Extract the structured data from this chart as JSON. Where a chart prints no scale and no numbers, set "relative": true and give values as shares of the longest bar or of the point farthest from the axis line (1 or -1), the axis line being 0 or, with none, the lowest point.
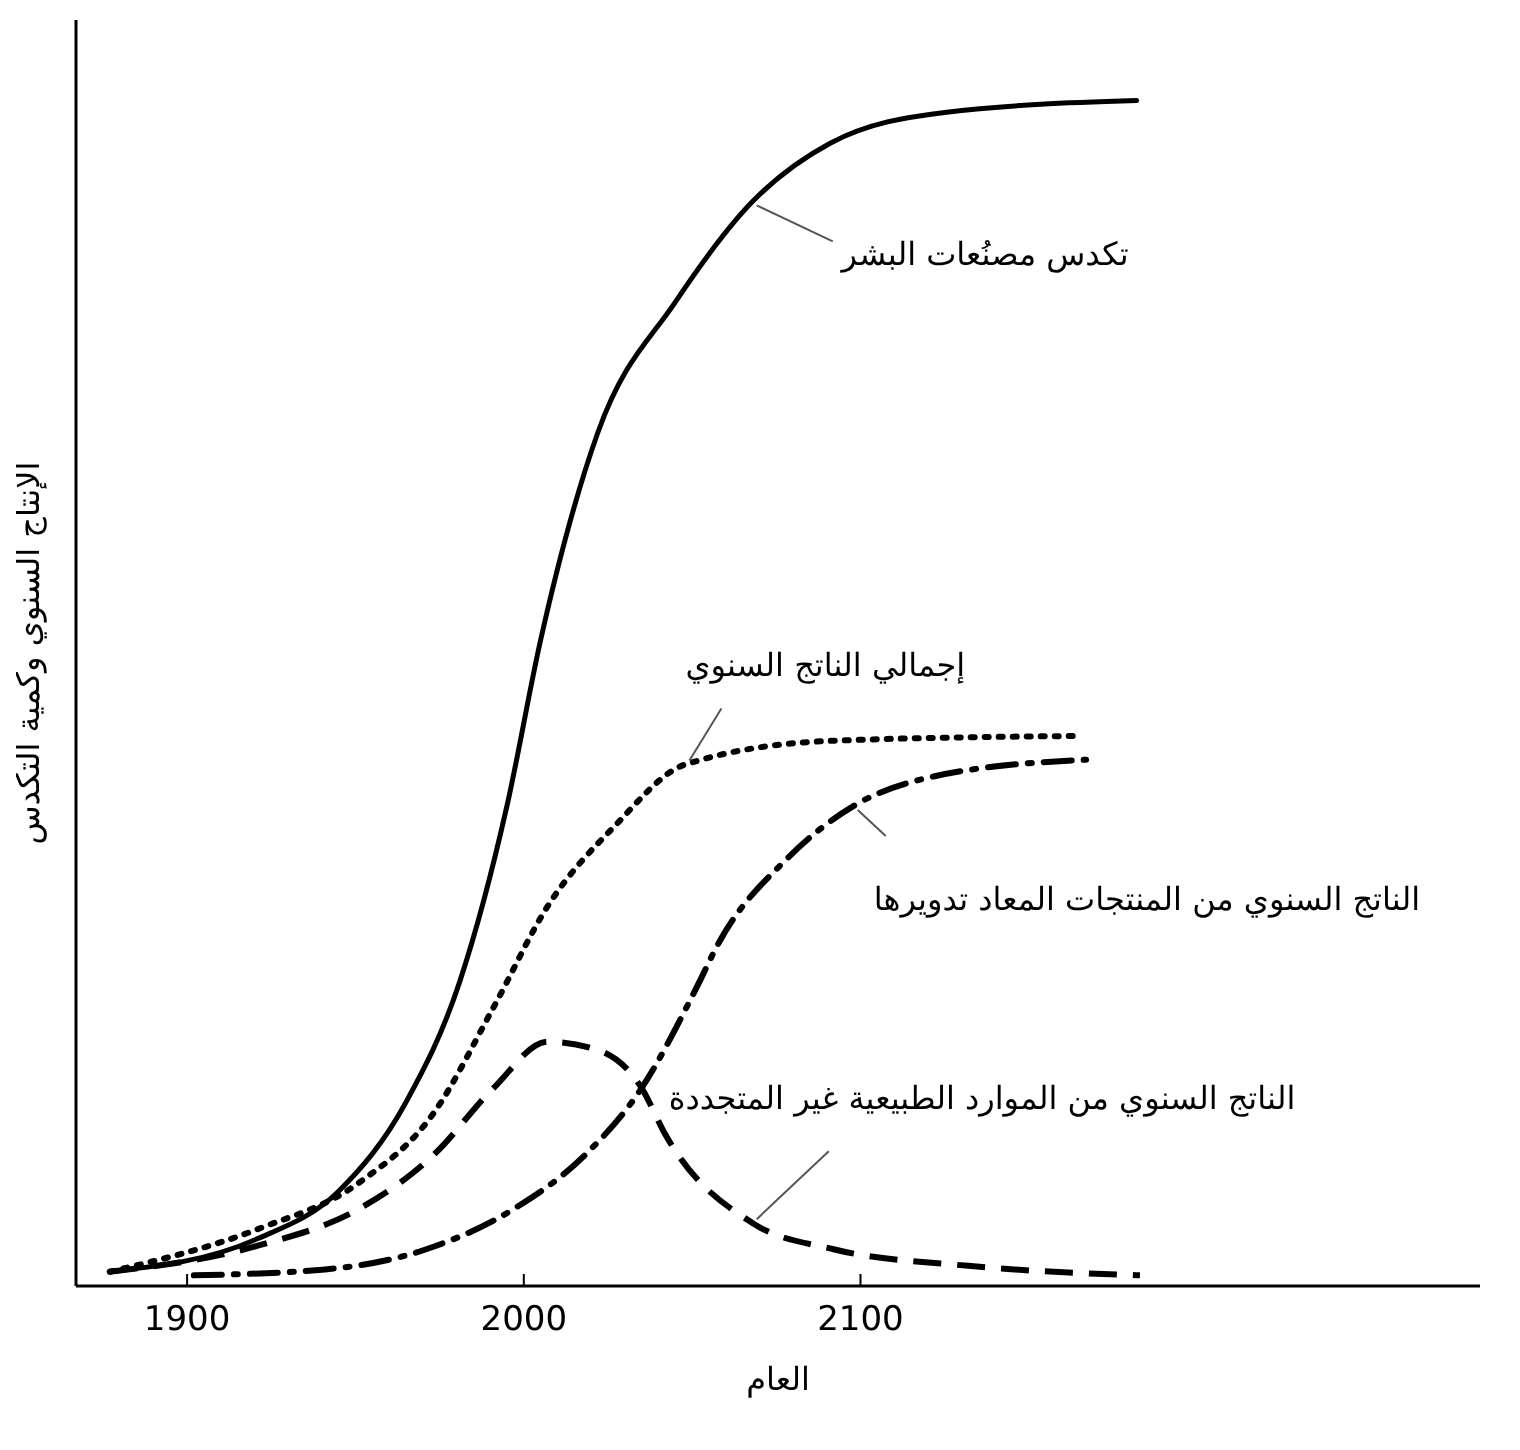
{
  "chart_data": {
    "type": "line",
    "relative": true,
    "xlabel": "العام",
    "ylabel": "الإنتاج السنوي وكمية التكدس",
    "xlim": [
      1867,
      2284
    ],
    "xticks": [
      1900,
      2000,
      2100
    ],
    "legend": false,
    "grid": false,
    "marker": "none",
    "series": [
      {
        "name": "تكدس مصنُعات البشر",
        "color": "#000000",
        "line_style": "solid",
        "x": [
          1877,
          1921,
          1945,
          1965,
          1981,
          1995,
          2005,
          2022,
          2045,
          2068,
          2091,
          2125,
          2182
        ],
        "values": [
          0.012,
          0.04,
          0.08,
          0.155,
          0.257,
          0.405,
          0.545,
          0.72,
          0.83,
          0.915,
          0.964,
          0.99,
          1
        ]
      },
      {
        "name": "إجمالي الناتج السنوي",
        "color": "#000000",
        "line_style": "dotted",
        "x": [
          1877,
          1921,
          1951,
          1973,
          1991,
          2007,
          2027,
          2048,
          2092,
          2165
        ],
        "values": [
          0.012,
          0.048,
          0.087,
          0.145,
          0.235,
          0.32,
          0.388,
          0.44,
          0.46,
          0.464
        ]
      },
      {
        "name": "الناتج السنوي من المنتجات المعاد تدويرها",
        "color": "#000000",
        "line_style": "dashdot",
        "x": [
          1902,
          1941,
          1971,
          1997,
          2018,
          2035,
          2051,
          2058,
          2078,
          2098,
          2122,
          2167
        ],
        "values": [
          0.009,
          0.014,
          0.031,
          0.065,
          0.11,
          0.167,
          0.25,
          0.29,
          0.36,
          0.405,
          0.43,
          0.444
        ]
      },
      {
        "name": "الناتج السنوي من الموارد الطبيعية غير المتجددة",
        "color": "#000000",
        "line_style": "dashed",
        "x": [
          1877,
          1921,
          1951,
          1973,
          1991,
          2007,
          2021,
          2035,
          2042,
          2068,
          2092,
          2132,
          2183
        ],
        "values": [
          0.012,
          0.034,
          0.065,
          0.11,
          0.167,
          0.206,
          0.2,
          0.167,
          0.128,
          0.053,
          0.031,
          0.017,
          0.009
        ]
      }
    ]
  }
}
